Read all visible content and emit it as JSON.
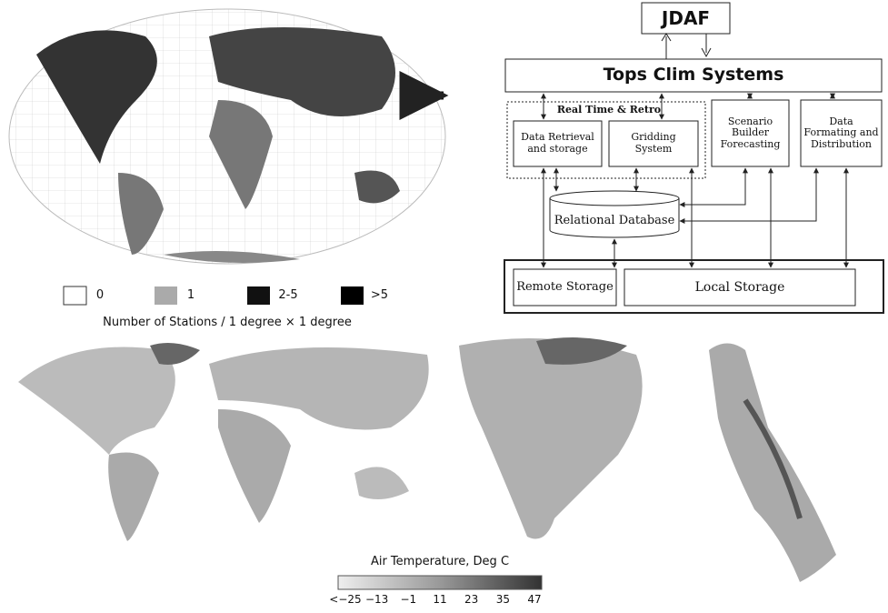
{
  "station_map": {
    "legend": [
      "0",
      "1",
      "2-5",
      ">5"
    ],
    "caption": "Number of Stations / 1 degree × 1 degree"
  },
  "diagram": {
    "nodes": {
      "jdaf": "JDAF",
      "tops": "Tops Clim Systems",
      "group": "Real Time & Retro",
      "retrieval": "Data Retrieval and storage",
      "gridding": "Gridding System",
      "scenario": "Scenario Builder Forecasting",
      "formating": "Data Formating and Distribution",
      "database": "Relational Database",
      "remote": "Remote Storage",
      "local": "Local Storage"
    }
  },
  "temperature_map": {
    "title": "Air Temperature, Deg C",
    "ticks": [
      "<−25",
      "−13",
      "−1",
      "11",
      "23",
      "35",
      "47"
    ]
  }
}
